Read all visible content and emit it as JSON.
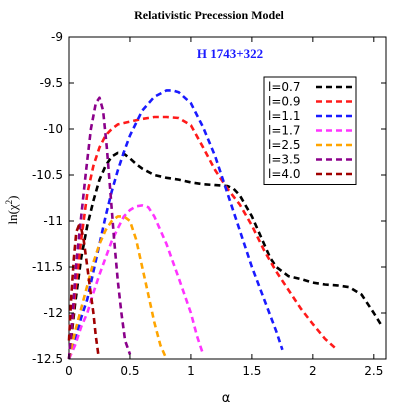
{
  "chart_data": {
    "type": "line",
    "title": "Relativistic Precession Model",
    "annotation": "H 1743+322",
    "annotation_color": "#1a1aff",
    "xlabel": "α",
    "ylabel_base": "ln(χ",
    "ylabel_sup": "2",
    "ylabel_end": ")",
    "xlim": [
      0,
      2.6
    ],
    "ylim": [
      -12.5,
      -9
    ],
    "xticks": [
      0,
      0.5,
      1,
      1.5,
      2,
      2.5
    ],
    "xtick_labels": [
      "0",
      "0.5",
      "1",
      "1.5",
      "2",
      "2.5"
    ],
    "yticks": [
      -12.5,
      -12,
      -11.5,
      -11,
      -10.5,
      -10,
      -9.5,
      -9
    ],
    "ytick_labels": [
      "-12.5",
      "-12",
      "-11.5",
      "-11",
      "-10.5",
      "-10",
      "-9.5",
      "-9"
    ],
    "grid": false,
    "legend_position": "top-right",
    "line_style": "dashed",
    "series": [
      {
        "name": "l=0.7",
        "color": "#000000",
        "x": [
          0.0,
          0.05,
          0.1,
          0.15,
          0.2,
          0.25,
          0.3,
          0.35,
          0.4,
          0.45,
          0.5,
          0.55,
          0.6,
          0.7,
          0.8,
          0.9,
          1.0,
          1.1,
          1.2,
          1.3,
          1.35,
          1.4,
          1.5,
          1.6,
          1.65,
          1.7,
          1.8,
          1.9,
          2.0,
          2.1,
          2.2,
          2.3,
          2.4,
          2.5,
          2.57
        ],
        "y": [
          -12.5,
          -11.9,
          -11.4,
          -11.05,
          -10.78,
          -10.55,
          -10.4,
          -10.3,
          -10.26,
          -10.27,
          -10.32,
          -10.38,
          -10.43,
          -10.5,
          -10.53,
          -10.55,
          -10.58,
          -10.6,
          -10.61,
          -10.62,
          -10.65,
          -10.72,
          -10.95,
          -11.25,
          -11.4,
          -11.5,
          -11.6,
          -11.63,
          -11.67,
          -11.69,
          -11.7,
          -11.72,
          -11.8,
          -12.0,
          -12.15
        ]
      },
      {
        "name": "l=0.9",
        "color": "#ff1a1a",
        "x": [
          0.0,
          0.05,
          0.1,
          0.15,
          0.2,
          0.25,
          0.3,
          0.35,
          0.4,
          0.5,
          0.6,
          0.7,
          0.8,
          0.9,
          1.0,
          1.1,
          1.2,
          1.3,
          1.4,
          1.5,
          1.6,
          1.7,
          1.8,
          1.9,
          2.0,
          2.1,
          2.2
        ],
        "y": [
          -12.5,
          -11.8,
          -11.2,
          -10.7,
          -10.4,
          -10.2,
          -10.07,
          -10.0,
          -9.95,
          -9.92,
          -9.89,
          -9.87,
          -9.87,
          -9.88,
          -9.96,
          -10.2,
          -10.45,
          -10.65,
          -10.82,
          -11.05,
          -11.32,
          -11.55,
          -11.75,
          -11.95,
          -12.12,
          -12.28,
          -12.4
        ]
      },
      {
        "name": "l=1.1",
        "color": "#1a1aff",
        "x": [
          0.0,
          0.05,
          0.1,
          0.15,
          0.2,
          0.25,
          0.3,
          0.35,
          0.4,
          0.45,
          0.5,
          0.6,
          0.7,
          0.8,
          0.85,
          0.9,
          1.0,
          1.1,
          1.2,
          1.3,
          1.4,
          1.5,
          1.6,
          1.7,
          1.75
        ],
        "y": [
          -12.5,
          -12.3,
          -12.05,
          -11.85,
          -11.55,
          -11.25,
          -10.95,
          -10.68,
          -10.45,
          -10.25,
          -10.07,
          -9.8,
          -9.65,
          -9.58,
          -9.58,
          -9.6,
          -9.72,
          -9.98,
          -10.3,
          -10.7,
          -11.1,
          -11.5,
          -11.85,
          -12.2,
          -12.4
        ]
      },
      {
        "name": "l=1.7",
        "color": "#ff33ff",
        "x": [
          0.0,
          0.05,
          0.1,
          0.15,
          0.2,
          0.25,
          0.3,
          0.35,
          0.4,
          0.45,
          0.5,
          0.55,
          0.6,
          0.65,
          0.7,
          0.8,
          0.9,
          1.0,
          1.05,
          1.1
        ],
        "y": [
          -12.5,
          -12.35,
          -12.15,
          -12.0,
          -11.78,
          -11.58,
          -11.4,
          -11.22,
          -11.08,
          -10.95,
          -10.88,
          -10.84,
          -10.83,
          -10.85,
          -10.95,
          -11.25,
          -11.62,
          -12.0,
          -12.25,
          -12.45
        ]
      },
      {
        "name": "l=2.5",
        "color": "#ffa500",
        "x": [
          0.0,
          0.05,
          0.1,
          0.15,
          0.2,
          0.25,
          0.3,
          0.35,
          0.4,
          0.45,
          0.5,
          0.55,
          0.6,
          0.65,
          0.7,
          0.75,
          0.8
        ],
        "y": [
          -12.5,
          -12.2,
          -11.95,
          -11.7,
          -11.45,
          -11.25,
          -11.1,
          -11.0,
          -10.95,
          -10.95,
          -11.0,
          -11.2,
          -11.5,
          -11.8,
          -12.1,
          -12.35,
          -12.5
        ]
      },
      {
        "name": "l=3.5",
        "color": "#8b008b",
        "x": [
          0.0,
          0.03,
          0.06,
          0.1,
          0.14,
          0.18,
          0.22,
          0.25,
          0.28,
          0.31,
          0.34,
          0.37,
          0.4,
          0.43,
          0.46,
          0.5
        ],
        "y": [
          -12.5,
          -12.0,
          -11.45,
          -10.95,
          -10.45,
          -10.0,
          -9.72,
          -9.66,
          -9.8,
          -10.2,
          -10.7,
          -11.2,
          -11.65,
          -12.0,
          -12.3,
          -12.45
        ]
      },
      {
        "name": "l=4.0",
        "color": "#a00000",
        "x": [
          0.0,
          0.02,
          0.04,
          0.06,
          0.08,
          0.1,
          0.12,
          0.14,
          0.16,
          0.18,
          0.2,
          0.22,
          0.24
        ],
        "y": [
          -12.3,
          -11.8,
          -11.4,
          -11.12,
          -11.05,
          -11.08,
          -11.2,
          -11.4,
          -11.6,
          -11.8,
          -12.0,
          -12.25,
          -12.45
        ]
      }
    ]
  }
}
